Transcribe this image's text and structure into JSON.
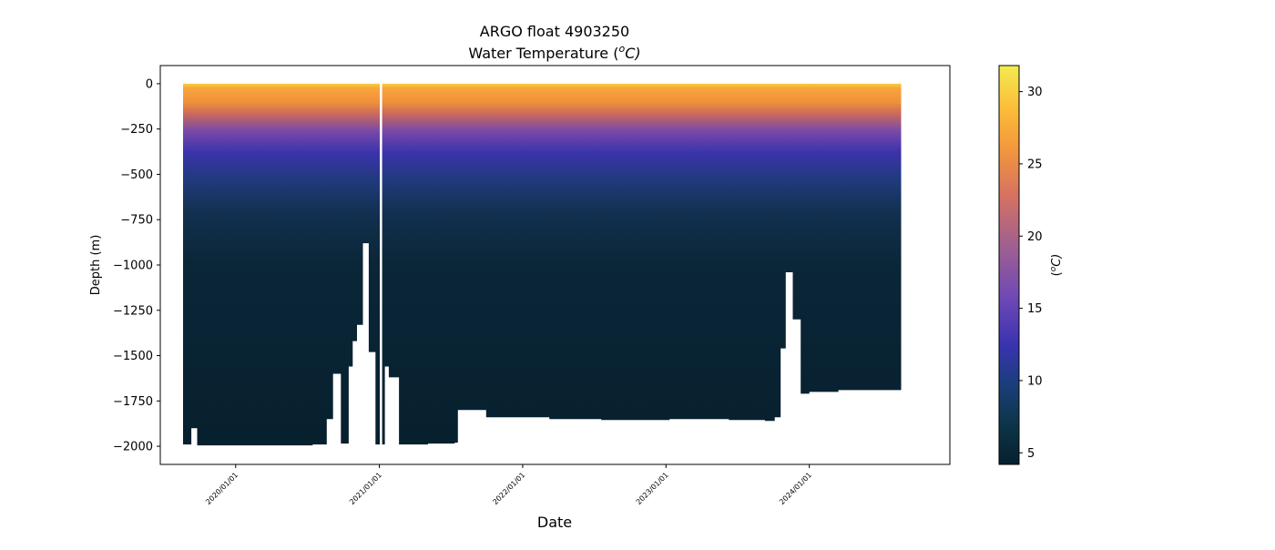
{
  "chart_data": {
    "type": "heatmap",
    "title": "ARGO float 4903250",
    "subtitle": "Water Temperature (",
    "subtitle_sup": "o",
    "subtitle_tail": "C)",
    "xlabel": "Date",
    "ylabel": "Depth (m)",
    "colorbar_label_open": "(",
    "colorbar_label_sup": "o",
    "colorbar_label_tail": "C)",
    "xlim": [
      "2019-06-23",
      "2024-12-24"
    ],
    "ylim": [
      -2100,
      100
    ],
    "grid": false,
    "colormap": [
      "#06202e",
      "#0c3548",
      "#1a3e7a",
      "#3a33b0",
      "#7049b5",
      "#a1608f",
      "#d8735f",
      "#f59a3b",
      "#fbc03a",
      "#f3ec50"
    ],
    "color_range": [
      4.2,
      31.8
    ],
    "x_ticks": [
      {
        "value": "2020-01-01",
        "label": "2020/01/01"
      },
      {
        "value": "2021-01-01",
        "label": "2021/01/01"
      },
      {
        "value": "2022-01-01",
        "label": "2022/01/01"
      },
      {
        "value": "2023-01-01",
        "label": "2023/01/01"
      },
      {
        "value": "2024-01-01",
        "label": "2024/01/01"
      }
    ],
    "y_ticks": [
      {
        "value": 0,
        "label": "0"
      },
      {
        "value": -250,
        "label": "−250"
      },
      {
        "value": -500,
        "label": "−500"
      },
      {
        "value": -750,
        "label": "−750"
      },
      {
        "value": -1000,
        "label": "−1000"
      },
      {
        "value": -1250,
        "label": "−1250"
      },
      {
        "value": -1500,
        "label": "−1500"
      },
      {
        "value": -1750,
        "label": "−1750"
      },
      {
        "value": -2000,
        "label": "−2000"
      }
    ],
    "colorbar_ticks": [
      {
        "value": 5,
        "label": "5"
      },
      {
        "value": 10,
        "label": "10"
      },
      {
        "value": 15,
        "label": "15"
      },
      {
        "value": 20,
        "label": "20"
      },
      {
        "value": 25,
        "label": "25"
      },
      {
        "value": 30,
        "label": "30"
      }
    ],
    "profile_max_depth": [
      {
        "date": "2019-08-20",
        "depth": -1990
      },
      {
        "date": "2019-09-10",
        "depth": -1900
      },
      {
        "date": "2019-09-25",
        "depth": -1995
      },
      {
        "date": "2020-07-15",
        "depth": -1990
      },
      {
        "date": "2020-08-20",
        "depth": -1850
      },
      {
        "date": "2020-09-05",
        "depth": -1600
      },
      {
        "date": "2020-09-25",
        "depth": -1985
      },
      {
        "date": "2020-10-15",
        "depth": -1560
      },
      {
        "date": "2020-10-25",
        "depth": -1420
      },
      {
        "date": "2020-11-05",
        "depth": -1330
      },
      {
        "date": "2020-11-20",
        "depth": -880
      },
      {
        "date": "2020-12-05",
        "depth": -1480
      },
      {
        "date": "2020-12-22",
        "depth": -1990
      },
      {
        "date": "2021-01-15",
        "depth": -1560
      },
      {
        "date": "2021-01-25",
        "depth": -1620
      },
      {
        "date": "2021-02-20",
        "depth": -1990
      },
      {
        "date": "2021-03-25",
        "depth": -1990
      },
      {
        "date": "2021-05-05",
        "depth": -1985
      },
      {
        "date": "2021-07-12",
        "depth": -1980
      },
      {
        "date": "2021-07-20",
        "depth": -1800
      },
      {
        "date": "2021-09-30",
        "depth": -1840
      },
      {
        "date": "2022-03-10",
        "depth": -1850
      },
      {
        "date": "2022-07-20",
        "depth": -1855
      },
      {
        "date": "2023-01-10",
        "depth": -1850
      },
      {
        "date": "2023-06-10",
        "depth": -1855
      },
      {
        "date": "2023-09-10",
        "depth": -1860
      },
      {
        "date": "2023-10-05",
        "depth": -1840
      },
      {
        "date": "2023-10-20",
        "depth": -1460
      },
      {
        "date": "2023-11-02",
        "depth": -1040
      },
      {
        "date": "2023-11-20",
        "depth": -1300
      },
      {
        "date": "2023-12-10",
        "depth": -1710
      },
      {
        "date": "2024-01-01",
        "depth": -1700
      },
      {
        "date": "2024-03-15",
        "depth": -1690
      },
      {
        "date": "2024-06-01",
        "depth": -1690
      },
      {
        "date": "2024-08-22",
        "depth": -1680
      }
    ],
    "data_gaps": [
      {
        "start": "2021-01-02",
        "end": "2021-01-08"
      }
    ]
  }
}
